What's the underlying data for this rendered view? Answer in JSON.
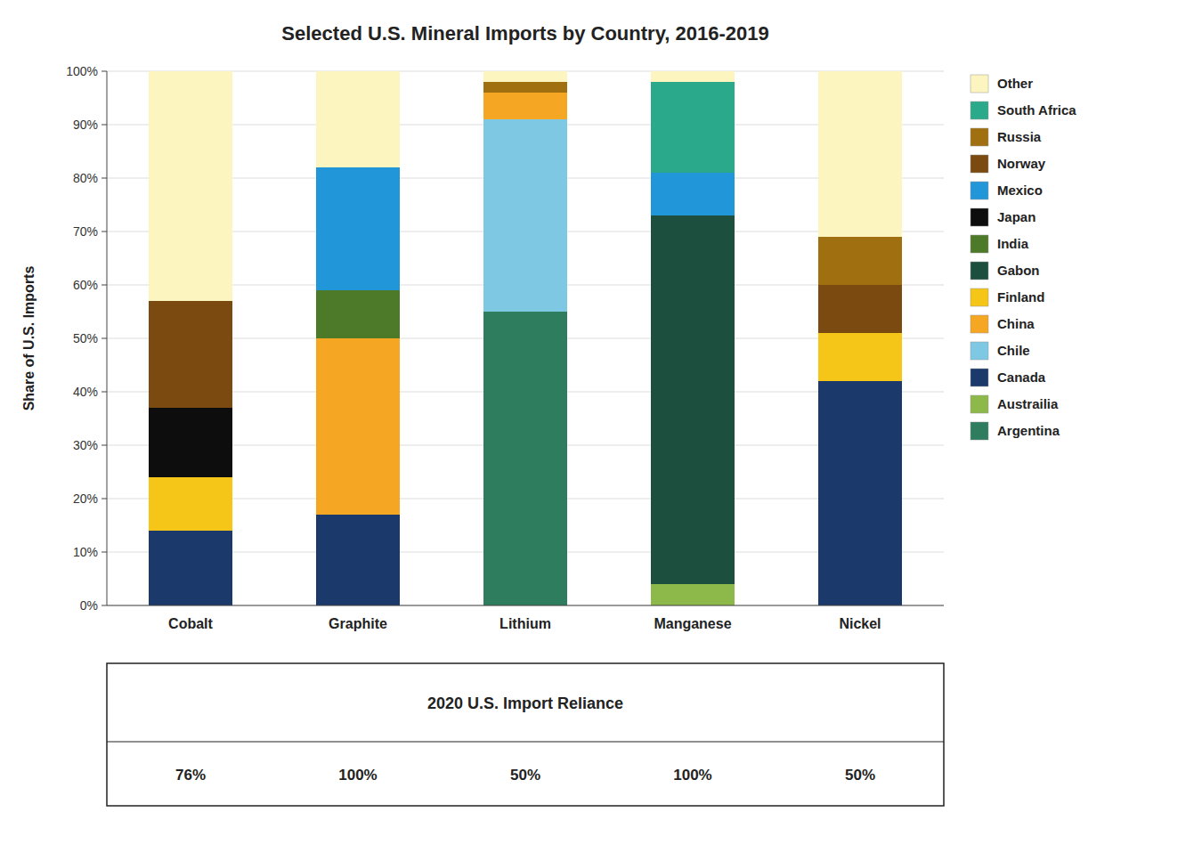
{
  "chart_data": {
    "type": "bar",
    "stacked": true,
    "title": "Selected U.S. Mineral Imports by Country, 2016-2019",
    "y_label": "Share of U.S. Imports",
    "categories": [
      "Cobalt",
      "Graphite",
      "Lithium",
      "Manganese",
      "Nickel"
    ],
    "series": [
      {
        "name": "Argentina",
        "color": "#2e7d5e",
        "values": [
          0,
          0,
          55,
          0,
          0
        ]
      },
      {
        "name": "Austrailia",
        "color": "#8db84a",
        "values": [
          0,
          0,
          0,
          4,
          0
        ]
      },
      {
        "name": "Canada",
        "color": "#1b3a6b",
        "values": [
          14,
          17,
          0,
          0,
          42
        ]
      },
      {
        "name": "Chile",
        "color": "#7ec8e3",
        "values": [
          0,
          0,
          36,
          0,
          0
        ]
      },
      {
        "name": "China",
        "color": "#f5a623",
        "values": [
          0,
          33,
          5,
          0,
          0
        ]
      },
      {
        "name": "Finland",
        "color": "#f5c518",
        "values": [
          10,
          0,
          0,
          0,
          9
        ]
      },
      {
        "name": "Gabon",
        "color": "#1d4f3e",
        "values": [
          0,
          0,
          0,
          69,
          0
        ]
      },
      {
        "name": "India",
        "color": "#4d7a28",
        "values": [
          0,
          9,
          0,
          0,
          0
        ]
      },
      {
        "name": "Japan",
        "color": "#0d0d0d",
        "values": [
          13,
          0,
          0,
          0,
          0
        ]
      },
      {
        "name": "Mexico",
        "color": "#2196d8",
        "values": [
          0,
          23,
          0,
          8,
          0
        ]
      },
      {
        "name": "Norway",
        "color": "#7b4a10",
        "values": [
          20,
          0,
          0,
          0,
          9
        ]
      },
      {
        "name": "Russia",
        "color": "#a07010",
        "values": [
          0,
          0,
          2,
          0,
          9
        ]
      },
      {
        "name": "South Africa",
        "color": "#2aaa8a",
        "values": [
          0,
          0,
          0,
          17,
          0
        ]
      },
      {
        "name": "Other",
        "color": "#fdf5c0",
        "values": [
          43,
          18,
          2,
          2,
          31
        ]
      }
    ],
    "ylim": [
      0,
      100
    ],
    "yticks": [
      {
        "value": 0,
        "label": "0%"
      },
      {
        "value": 10,
        "label": "10%"
      },
      {
        "value": 20,
        "label": "20%"
      },
      {
        "value": 30,
        "label": "30%"
      },
      {
        "value": 40,
        "label": "40%"
      },
      {
        "value": 50,
        "label": "50%"
      },
      {
        "value": 60,
        "label": "60%"
      },
      {
        "value": 70,
        "label": "70%"
      },
      {
        "value": 80,
        "label": "80%"
      },
      {
        "value": 90,
        "label": "90%"
      },
      {
        "value": 100,
        "label": "100%"
      }
    ],
    "grid": true,
    "legend": "right",
    "import_reliance": {
      "title": "2020 U.S. Import Reliance",
      "values": [
        76,
        100,
        50,
        100,
        50
      ],
      "value_labels": [
        "76%",
        "100%",
        "50%",
        "100%",
        "50%"
      ]
    }
  }
}
